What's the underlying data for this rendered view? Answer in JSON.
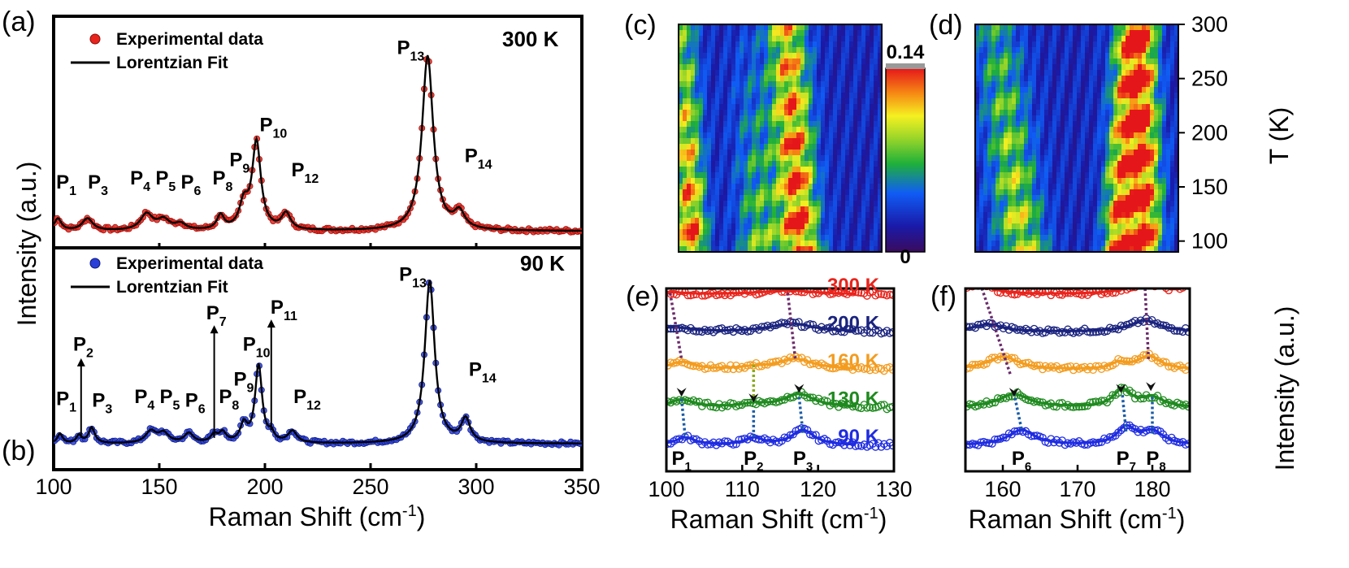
{
  "panels": {
    "a": {
      "letter": "(a)",
      "temperature": "300 K"
    },
    "b": {
      "letter": "(b)",
      "temperature": "90 K"
    },
    "c": {
      "letter": "(c)"
    },
    "d": {
      "letter": "(d)"
    },
    "e": {
      "letter": "(e)"
    },
    "f": {
      "letter": "(f)"
    }
  },
  "legend": {
    "experimental": "Experimental data",
    "fit": "Lorentzian Fit"
  },
  "axes": {
    "ab_xlabel_main": "Raman Shift (cm",
    "ab_xlabel_sup": "-1",
    "ab_xlabel_close": ")",
    "ab_ylabel": "Intensity (a.u.)",
    "ef_ylabel": "Intensity (a.u.)",
    "cd_ylabel": "T (K)",
    "ab_xticks": [
      "100",
      "150",
      "200",
      "250",
      "300",
      "350"
    ],
    "e_xticks": [
      "100",
      "110",
      "120",
      "130"
    ],
    "f_xticks": [
      "160",
      "170",
      "180"
    ],
    "d_yticks": [
      "300",
      "250",
      "200",
      "150",
      "100"
    ]
  },
  "colorbar": {
    "max_label": "0.14",
    "min_label": "0"
  },
  "chart_data": [
    {
      "panel": "a",
      "type": "line",
      "title": "300 K",
      "xlabel": "Raman Shift (cm-1)",
      "ylabel": "Intensity (a.u.)",
      "xlim": [
        100,
        350
      ],
      "ylim": [
        0,
        1.05
      ],
      "series": [
        {
          "name": "Experimental data",
          "color": "#e8241c",
          "style": "markers"
        },
        {
          "name": "Lorentzian Fit",
          "color": "#000000",
          "style": "line"
        }
      ],
      "baseline": 0.05,
      "peaks": [
        {
          "label": "P1",
          "pos": 102,
          "amp": 0.06,
          "w": 2.0
        },
        {
          "label": "P3",
          "pos": 116,
          "amp": 0.06,
          "w": 3.0
        },
        {
          "label": "P4",
          "pos": 144,
          "amp": 0.08,
          "w": 3.5
        },
        {
          "label": "P5",
          "pos": 152,
          "amp": 0.05,
          "w": 3.5
        },
        {
          "label": "P6",
          "pos": 160,
          "amp": 0.03,
          "w": 3.0
        },
        {
          "label": "P8",
          "pos": 179,
          "amp": 0.07,
          "w": 2.0
        },
        {
          "label": "P9",
          "pos": 190,
          "amp": 0.12,
          "w": 2.5
        },
        {
          "label": "P10",
          "pos": 196,
          "amp": 0.43,
          "w": 2.5
        },
        {
          "label": "P12",
          "pos": 210,
          "amp": 0.08,
          "w": 2.5
        },
        {
          "label": "P13",
          "pos": 277,
          "amp": 0.86,
          "w": 3.2
        },
        {
          "label": "P14",
          "pos": 292,
          "amp": 0.08,
          "w": 3.0
        }
      ],
      "labels": [
        {
          "main": "P",
          "sub": "1",
          "x": 106,
          "y": 0.26
        },
        {
          "main": "P",
          "sub": "3",
          "x": 121,
          "y": 0.26
        },
        {
          "main": "P",
          "sub": "4",
          "x": 141,
          "y": 0.28
        },
        {
          "main": "P",
          "sub": "5",
          "x": 153,
          "y": 0.28
        },
        {
          "main": "P",
          "sub": "6",
          "x": 165,
          "y": 0.26
        },
        {
          "main": "P",
          "sub": "8",
          "x": 180,
          "y": 0.28
        },
        {
          "main": "P",
          "sub": "9",
          "x": 188,
          "y": 0.37
        },
        {
          "main": "P",
          "sub": "10",
          "x": 204,
          "y": 0.54
        },
        {
          "main": "P",
          "sub": "12",
          "x": 219,
          "y": 0.32
        },
        {
          "main": "P",
          "sub": "13",
          "x": 269,
          "y": 0.92
        },
        {
          "main": "P",
          "sub": "14",
          "x": 301,
          "y": 0.39
        }
      ]
    },
    {
      "panel": "b",
      "type": "line",
      "title": "90 K",
      "xlabel": "Raman Shift (cm-1)",
      "ylabel": "Intensity (a.u.)",
      "xlim": [
        100,
        350
      ],
      "ylim": [
        0,
        1.05
      ],
      "series": [
        {
          "name": "Experimental data",
          "color": "#2a3fd8",
          "style": "markers"
        },
        {
          "name": "Lorentzian Fit",
          "color": "#000000",
          "style": "line"
        }
      ],
      "baseline": 0.1,
      "peaks": [
        {
          "label": "P1",
          "pos": 103,
          "amp": 0.05,
          "w": 1.5
        },
        {
          "label": "P2",
          "pos": 112,
          "amp": 0.04,
          "w": 1.5
        },
        {
          "label": "P3",
          "pos": 118,
          "amp": 0.08,
          "w": 1.8
        },
        {
          "label": "P4",
          "pos": 146,
          "amp": 0.06,
          "w": 3.0
        },
        {
          "label": "P5",
          "pos": 152,
          "amp": 0.05,
          "w": 3.0
        },
        {
          "label": "P6",
          "pos": 164,
          "amp": 0.05,
          "w": 2.5
        },
        {
          "label": "P7",
          "pos": 176,
          "amp": 0.04,
          "w": 2.0
        },
        {
          "label": "P8",
          "pos": 180,
          "amp": 0.05,
          "w": 2.0
        },
        {
          "label": "P9",
          "pos": 190,
          "amp": 0.09,
          "w": 2.0
        },
        {
          "label": "P10",
          "pos": 197,
          "amp": 0.4,
          "w": 2.0
        },
        {
          "label": "P11",
          "pos": 203,
          "amp": 0.04,
          "w": 1.5
        },
        {
          "label": "P12",
          "pos": 213,
          "amp": 0.06,
          "w": 2.5
        },
        {
          "label": "P13",
          "pos": 278,
          "amp": 0.84,
          "w": 2.8
        },
        {
          "label": "P14",
          "pos": 295,
          "amp": 0.12,
          "w": 2.5
        }
      ],
      "labels": [
        {
          "main": "P",
          "sub": "1",
          "x": 106,
          "y": 0.3
        },
        {
          "main": "P",
          "sub": "2",
          "x": 114,
          "y": 0.58
        },
        {
          "main": "P",
          "sub": "3",
          "x": 123,
          "y": 0.29
        },
        {
          "main": "P",
          "sub": "4",
          "x": 143,
          "y": 0.31
        },
        {
          "main": "P",
          "sub": "5",
          "x": 155,
          "y": 0.31
        },
        {
          "main": "P",
          "sub": "6",
          "x": 167,
          "y": 0.29
        },
        {
          "main": "P",
          "sub": "7",
          "x": 177,
          "y": 0.74
        },
        {
          "main": "P",
          "sub": "8",
          "x": 183,
          "y": 0.31
        },
        {
          "main": "P",
          "sub": "9",
          "x": 190,
          "y": 0.4
        },
        {
          "main": "P",
          "sub": "10",
          "x": 196,
          "y": 0.58
        },
        {
          "main": "P",
          "sub": "11",
          "x": 209,
          "y": 0.77
        },
        {
          "main": "P",
          "sub": "12",
          "x": 220,
          "y": 0.31
        },
        {
          "main": "P",
          "sub": "13",
          "x": 270,
          "y": 0.94
        },
        {
          "main": "P",
          "sub": "14",
          "x": 303,
          "y": 0.45
        }
      ],
      "arrows": [
        {
          "x": 113,
          "y0": 0.13,
          "y1": 0.54
        },
        {
          "x": 176,
          "y0": 0.13,
          "y1": 0.71
        },
        {
          "x": 203,
          "y0": 0.17,
          "y1": 0.74
        }
      ]
    },
    {
      "panel": "c",
      "type": "heatmap",
      "xlim": [
        100,
        130
      ],
      "ylim": [
        90,
        300
      ],
      "colorbar_range": [
        0,
        0.14
      ],
      "ridges": [
        {
          "pos_low": 102,
          "pos_high": 100.5,
          "width": 1.6,
          "amp_low": 0.12,
          "amp_high": 0.05
        },
        {
          "pos_low": 112,
          "pos_high": 110.5,
          "width": 2.2,
          "amp_low": 0.06,
          "amp_high": 0.01
        },
        {
          "pos_low": 118,
          "pos_high": 116,
          "width": 2.0,
          "amp_low": 0.13,
          "amp_high": 0.09
        }
      ]
    },
    {
      "panel": "d",
      "type": "heatmap",
      "xlim": [
        155,
        185
      ],
      "ylim": [
        90,
        300
      ],
      "yticks": [
        100,
        150,
        200,
        250,
        300
      ],
      "ylabel": "T (K)",
      "ridges": [
        {
          "pos_low": 162,
          "pos_high": 158,
          "width": 2.5,
          "amp_low": 0.08,
          "amp_high": 0.04
        },
        {
          "pos_low": 176,
          "pos_high": 177,
          "width": 1.5,
          "amp_low": 0.12,
          "amp_high": 0.03
        },
        {
          "pos_low": 180,
          "pos_high": 179,
          "width": 1.8,
          "amp_low": 0.13,
          "amp_high": 0.14
        }
      ]
    },
    {
      "panel": "e",
      "type": "line",
      "xlabel": "Raman Shift (cm-1)",
      "xlim": [
        100,
        130
      ],
      "xticks": [
        100,
        110,
        120,
        130
      ],
      "series": [
        {
          "name": "300 K",
          "color": "#e8241c",
          "offset": 4.0,
          "peaks": [
            {
              "pos": 100.5,
              "amp": 0.05,
              "w": 2
            },
            {
              "pos": 116,
              "amp": 0.1,
              "w": 4
            }
          ]
        },
        {
          "name": "200 K",
          "color": "#1a237e",
          "offset": 3.0,
          "peaks": [
            {
              "pos": 101,
              "amp": 0.12,
              "w": 2.5
            },
            {
              "pos": 116.5,
              "amp": 0.22,
              "w": 3.5
            }
          ]
        },
        {
          "name": "160 K",
          "color": "#f39c1f",
          "offset": 2.0,
          "peaks": [
            {
              "pos": 102,
              "amp": 0.2,
              "w": 2
            },
            {
              "pos": 111.5,
              "amp": 0.05,
              "w": 2
            },
            {
              "pos": 117,
              "amp": 0.28,
              "w": 3
            }
          ]
        },
        {
          "name": "130 K",
          "color": "#1f8a1f",
          "offset": 1.0,
          "peaks": [
            {
              "pos": 102,
              "amp": 0.2,
              "w": 2
            },
            {
              "pos": 111.5,
              "amp": 0.08,
              "w": 2
            },
            {
              "pos": 117.5,
              "amp": 0.35,
              "w": 2.5
            }
          ]
        },
        {
          "name": "90 K",
          "color": "#1f2ce0",
          "offset": 0.0,
          "peaks": [
            {
              "pos": 102.5,
              "amp": 0.2,
              "w": 1.6
            },
            {
              "pos": 111.5,
              "amp": 0.18,
              "w": 1.5
            },
            {
              "pos": 118,
              "amp": 0.4,
              "w": 1.8
            }
          ]
        }
      ],
      "peak_labels": [
        {
          "main": "P",
          "sub": "1",
          "x": 102
        },
        {
          "main": "P",
          "sub": "2",
          "x": 111.5
        },
        {
          "main": "P",
          "sub": "3",
          "x": 118
        }
      ],
      "trend_lines": [
        {
          "color": "#6b2a6b",
          "points": [
            [
              100.5,
              4.05
            ],
            [
              102,
              2.3
            ]
          ]
        },
        {
          "color": "#1a5ca8",
          "points": [
            [
              102,
              1.25
            ],
            [
              102.5,
              0.2
            ]
          ]
        },
        {
          "color": "#8aaa1a",
          "points": [
            [
              111.5,
              2.15
            ],
            [
              111.5,
              1.25
            ]
          ]
        },
        {
          "color": "#1a5ca8",
          "points": [
            [
              111.5,
              0.95
            ],
            [
              111.5,
              0.2
            ]
          ]
        },
        {
          "color": "#6b2a6b",
          "points": [
            [
              116,
              4.05
            ],
            [
              117,
              2.3
            ]
          ]
        },
        {
          "color": "#1a5ca8",
          "points": [
            [
              117.5,
              1.3
            ],
            [
              118,
              0.35
            ]
          ]
        }
      ],
      "arrow_tips": [
        [
          102,
          1.35
        ],
        [
          111.5,
          1.2
        ],
        [
          117.5,
          1.45
        ]
      ]
    },
    {
      "panel": "f",
      "type": "line",
      "xlabel": "Raman Shift (cm-1)",
      "ylabel": "Intensity (a.u.)",
      "xlim": [
        155,
        185
      ],
      "xticks": [
        160,
        170,
        180
      ],
      "series": [
        {
          "name": "300 K",
          "color": "#e8241c",
          "offset": 4.0,
          "peaks": [
            {
              "pos": 157,
              "amp": 0.25,
              "w": 2
            },
            {
              "pos": 179,
              "amp": 0.3,
              "w": 2.5
            },
            {
              "pos": 185,
              "amp": 0.2,
              "w": 1.5
            }
          ]
        },
        {
          "name": "200 K",
          "color": "#1a237e",
          "offset": 3.0,
          "peaks": [
            {
              "pos": 158,
              "amp": 0.2,
              "w": 2.5
            },
            {
              "pos": 179,
              "amp": 0.3,
              "w": 2.5
            }
          ]
        },
        {
          "name": "160 K",
          "color": "#f39c1f",
          "offset": 2.0,
          "peaks": [
            {
              "pos": 160,
              "amp": 0.35,
              "w": 2.5
            },
            {
              "pos": 175.5,
              "amp": 0.15,
              "w": 1.2
            },
            {
              "pos": 179.5,
              "amp": 0.35,
              "w": 2
            }
          ]
        },
        {
          "name": "130 K",
          "color": "#1f8a1f",
          "offset": 1.0,
          "peaks": [
            {
              "pos": 161.5,
              "amp": 0.35,
              "w": 2.5
            },
            {
              "pos": 176,
              "amp": 0.45,
              "w": 1.5
            },
            {
              "pos": 180,
              "amp": 0.25,
              "w": 1.8
            }
          ]
        },
        {
          "name": "90 K",
          "color": "#1f2ce0",
          "offset": 0.0,
          "peaks": [
            {
              "pos": 162.5,
              "amp": 0.4,
              "w": 2.2
            },
            {
              "pos": 176.5,
              "amp": 0.45,
              "w": 1.5
            },
            {
              "pos": 180,
              "amp": 0.35,
              "w": 1.8
            }
          ]
        }
      ],
      "peak_labels": [
        {
          "main": "P",
          "sub": "6",
          "x": 162.5
        },
        {
          "main": "P",
          "sub": "7",
          "x": 176.5
        },
        {
          "main": "P",
          "sub": "8",
          "x": 180.5
        }
      ],
      "trend_lines": [
        {
          "color": "#6b2a6b",
          "points": [
            [
              157,
              4.3
            ],
            [
              161,
              1.9
            ]
          ]
        },
        {
          "color": "#1a5ca8",
          "points": [
            [
              161.5,
              1.4
            ],
            [
              162.5,
              0.45
            ]
          ]
        },
        {
          "color": "#1a5ca8",
          "points": [
            [
              176,
              1.35
            ],
            [
              176.5,
              0.35
            ]
          ]
        },
        {
          "color": "#6b2a6b",
          "points": [
            [
              179,
              4.3
            ],
            [
              179.5,
              2.25
            ]
          ]
        },
        {
          "color": "#1a5ca8",
          "points": [
            [
              180,
              1.3
            ],
            [
              180,
              0.3
            ]
          ]
        }
      ],
      "arrow_tips": [
        [
          161.5,
          1.35
        ],
        [
          175.8,
          1.45
        ],
        [
          179.8,
          1.5
        ]
      ]
    }
  ]
}
